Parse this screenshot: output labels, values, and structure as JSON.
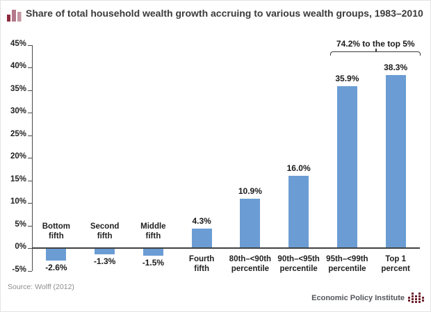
{
  "title": {
    "text": "Share of total household wealth growth accruing to various wealth groups, 1983–2010"
  },
  "chart_data": {
    "type": "bar",
    "title": "Share of total household wealth growth accruing to various wealth groups, 1983–2010",
    "categories": [
      [
        "Bottom",
        "fifth"
      ],
      [
        "Second",
        "fifth"
      ],
      [
        "Middle",
        "fifth"
      ],
      [
        "Fourth",
        "fifth"
      ],
      [
        "80th–<90th",
        "percentile"
      ],
      [
        "90th–<95th",
        "percentile"
      ],
      [
        "95th–<99th",
        "percentile"
      ],
      [
        "Top 1",
        "percent"
      ]
    ],
    "values": [
      -2.6,
      -1.3,
      -1.5,
      4.3,
      10.9,
      16.0,
      35.9,
      38.3
    ],
    "value_labels": [
      "-2.6%",
      "-1.3%",
      "-1.5%",
      "4.3%",
      "10.9%",
      "16.0%",
      "35.9%",
      "38.3%"
    ],
    "ylim": [
      -5,
      45
    ],
    "ytick_step": 5,
    "ytick_labels": [
      "45%",
      "40%",
      "35%",
      "30%",
      "25%",
      "20%",
      "15%",
      "10%",
      "5%",
      "0%",
      "-5%"
    ],
    "grid": false,
    "legend": "none",
    "bar_color": "#6b9dd4",
    "axis_color": "#4a4a4a",
    "annotation": {
      "label": "74.2% to the top 5%",
      "span": [
        6,
        7
      ]
    }
  },
  "footer": {
    "source": "Source: Wolff (2012)",
    "brand": "Economic Policy Institute"
  }
}
